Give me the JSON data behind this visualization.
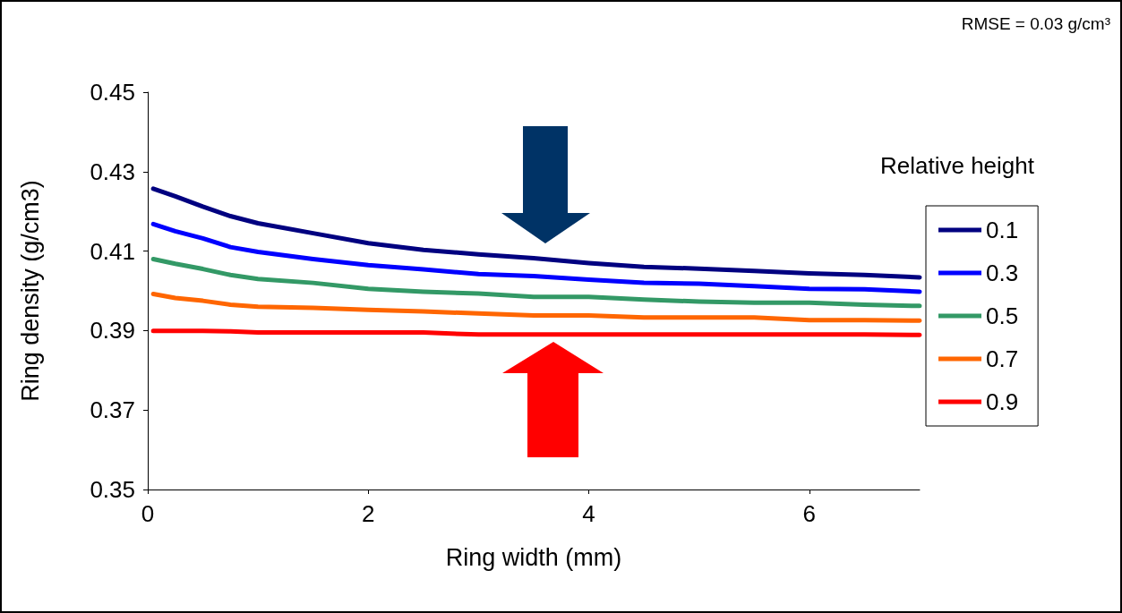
{
  "chart_data": {
    "type": "line",
    "xlabel": "Ring width (mm)",
    "ylabel": "Ring density (g/cm3)",
    "legend_title": "Relative height",
    "annotations": [
      "RMSE = 0.03 g/cm³"
    ],
    "x": [
      0.05,
      0.25,
      0.5,
      0.75,
      1,
      1.5,
      2,
      2.5,
      3,
      3.5,
      4,
      4.5,
      5,
      5.5,
      6,
      6.5,
      7
    ],
    "xlim": [
      0,
      7
    ],
    "xticks": [
      0,
      2,
      4,
      6
    ],
    "ylim": [
      0.35,
      0.45
    ],
    "yticks": [
      0.35,
      0.37,
      0.39,
      0.41,
      0.43,
      0.45
    ],
    "grid": false,
    "legend": "right",
    "marker": "none",
    "line_style": "solid",
    "series": [
      {
        "name": "0.1",
        "color": "#000080",
        "values": [
          0.4257,
          0.4238,
          0.4212,
          0.4188,
          0.417,
          0.4145,
          0.412,
          0.4103,
          0.4092,
          0.4082,
          0.407,
          0.406,
          0.4056,
          0.405,
          0.4044,
          0.404,
          0.4034
        ]
      },
      {
        "name": "0.3",
        "color": "#0000ff",
        "values": [
          0.4168,
          0.415,
          0.4132,
          0.411,
          0.4098,
          0.408,
          0.4065,
          0.4054,
          0.4042,
          0.4037,
          0.4028,
          0.402,
          0.4018,
          0.4012,
          0.4005,
          0.4004,
          0.3998
        ]
      },
      {
        "name": "0.5",
        "color": "#339966",
        "values": [
          0.408,
          0.4068,
          0.4055,
          0.404,
          0.403,
          0.402,
          0.4005,
          0.3998,
          0.3993,
          0.3985,
          0.3985,
          0.3978,
          0.3973,
          0.397,
          0.397,
          0.3965,
          0.3962
        ]
      },
      {
        "name": "0.7",
        "color": "#ff6600",
        "values": [
          0.3992,
          0.3982,
          0.3975,
          0.3965,
          0.396,
          0.3957,
          0.3952,
          0.3948,
          0.3943,
          0.3938,
          0.3938,
          0.3933,
          0.3933,
          0.3933,
          0.3926,
          0.3926,
          0.3925
        ]
      },
      {
        "name": "0.9",
        "color": "#ff0000",
        "values": [
          0.3899,
          0.3899,
          0.3899,
          0.3898,
          0.3895,
          0.3895,
          0.3895,
          0.3895,
          0.389,
          0.389,
          0.389,
          0.389,
          0.389,
          0.389,
          0.389,
          0.389,
          0.3889
        ]
      }
    ]
  }
}
